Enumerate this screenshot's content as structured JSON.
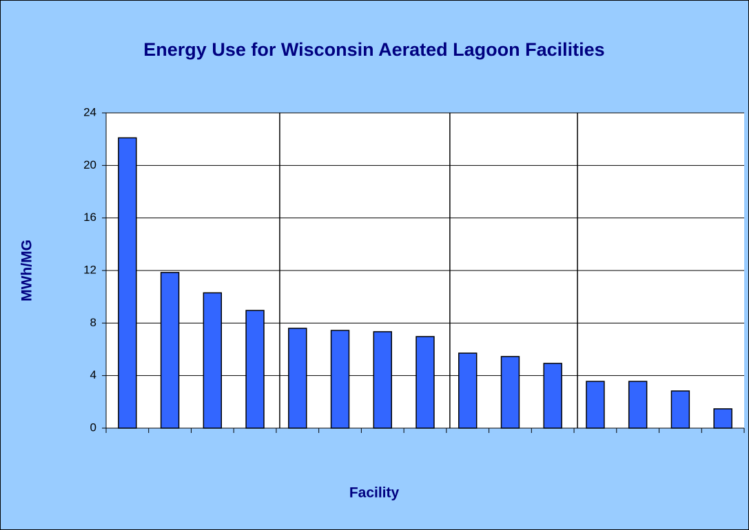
{
  "chart_data": {
    "type": "bar",
    "title": "Energy Use for Wisconsin Aerated Lagoon Facilities",
    "xlabel": "Facility",
    "ylabel": "MWh/MG",
    "categories": [
      null,
      null,
      null,
      null,
      null,
      null,
      null,
      null,
      null,
      null,
      null,
      null,
      null,
      null,
      null
    ],
    "values": [
      22.1,
      11.85,
      10.3,
      8.96,
      7.6,
      7.44,
      7.34,
      6.97,
      5.71,
      5.45,
      4.93,
      3.56,
      3.56,
      2.83,
      1.47
    ],
    "color": "#3366ff",
    "ylim": [
      0,
      24
    ],
    "yticks": [
      0,
      4,
      8,
      12,
      16,
      20,
      24
    ],
    "grid": true
  }
}
